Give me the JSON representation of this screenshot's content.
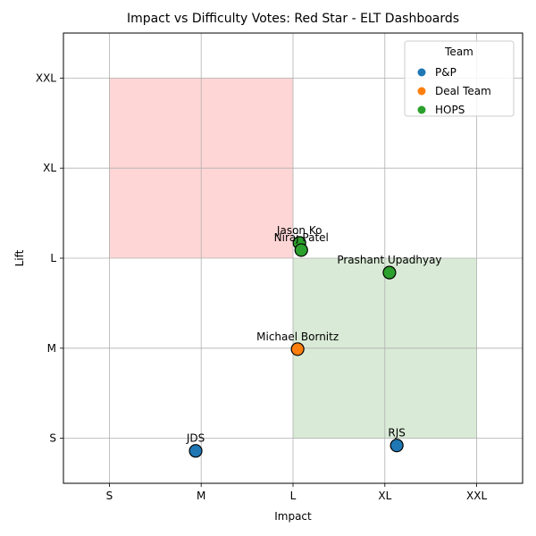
{
  "chart_data": {
    "type": "scatter",
    "title": "Impact vs Difficulty Votes: Red Star - ELT Dashboards",
    "xlabel": "Impact",
    "ylabel": "Lift",
    "x_categories": [
      "S",
      "M",
      "L",
      "XL",
      "XXL"
    ],
    "y_categories": [
      "S",
      "M",
      "L",
      "XL",
      "XXL"
    ],
    "xlim": [
      -0.5,
      4.5
    ],
    "ylim": [
      -0.5,
      4.5
    ],
    "grid": true,
    "legend": {
      "title": "Team",
      "placement": "top-right"
    },
    "regions": [
      {
        "color": "#ffd6d6",
        "x": [
          0,
          2
        ],
        "y": [
          2,
          4
        ]
      },
      {
        "color": "#d9ebd6",
        "x": [
          2,
          4
        ],
        "y": [
          0,
          2
        ]
      }
    ],
    "series": [
      {
        "name": "P&P",
        "color": "#1f77b4",
        "points": [
          {
            "label": "JDS",
            "x": 0.94,
            "y": -0.14
          },
          {
            "label": "RJS",
            "x": 3.13,
            "y": -0.08
          }
        ]
      },
      {
        "name": "Deal Team",
        "color": "#ff7f0e",
        "points": [
          {
            "label": "Michael Bornitz",
            "x": 2.05,
            "y": 0.99
          }
        ]
      },
      {
        "name": "HOPS",
        "color": "#2ca02c",
        "points": [
          {
            "label": "Jason Ko",
            "x": 2.07,
            "y": 2.17
          },
          {
            "label": "Niraj Patel",
            "x": 2.09,
            "y": 2.09
          },
          {
            "label": "Prashant Upadhyay",
            "x": 3.05,
            "y": 1.84
          }
        ]
      }
    ]
  }
}
